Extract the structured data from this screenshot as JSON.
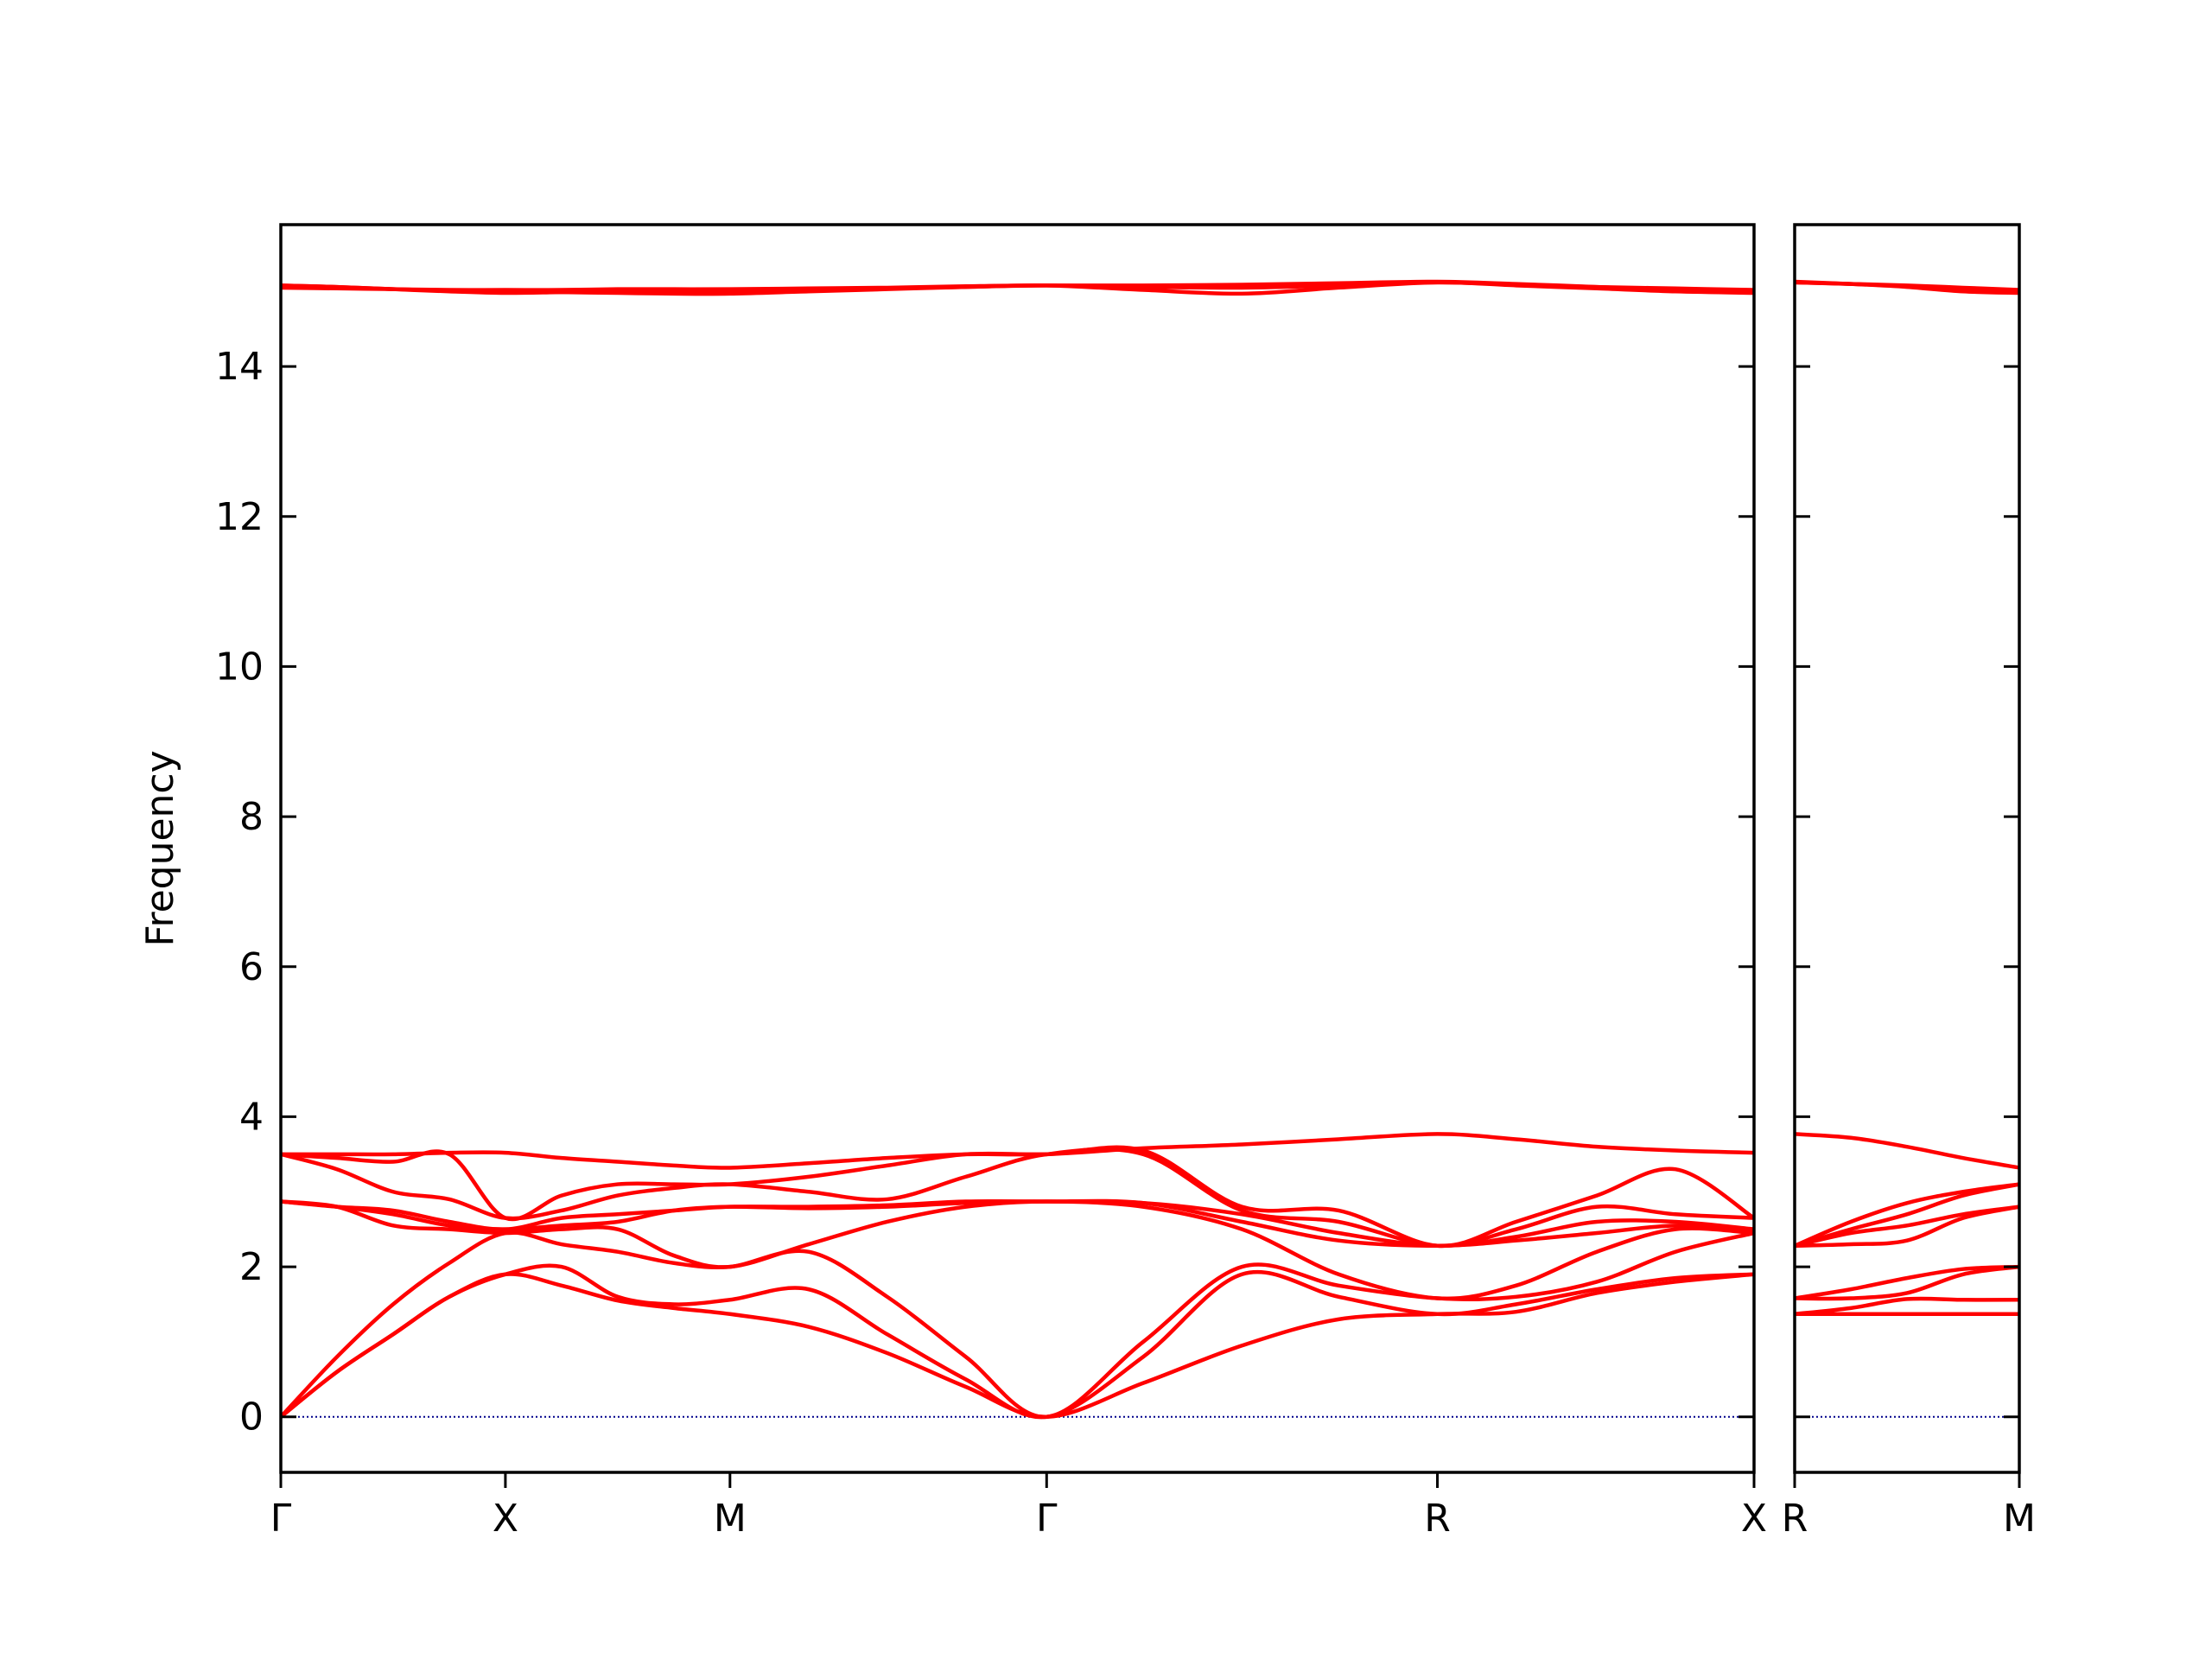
{
  "chart_data": [
    {
      "type": "line",
      "ylabel": "Frequency",
      "color": "#ff0000",
      "grid": false,
      "ytick_labels": true,
      "zero_line": {
        "value": 0,
        "color": "#00008b"
      },
      "xlim": [
        0,
        6.56
      ],
      "ylim": [
        -0.74,
        15.89
      ],
      "xticks": [
        {
          "value": 0,
          "label": "Γ"
        },
        {
          "value": 1,
          "label": "X"
        },
        {
          "value": 2,
          "label": "M"
        },
        {
          "value": 3.41,
          "label": "Γ"
        },
        {
          "value": 5.15,
          "label": "R"
        },
        {
          "value": 6.56,
          "label": "X"
        }
      ],
      "yticks": [
        0,
        2,
        4,
        6,
        8,
        10,
        12,
        14
      ],
      "x": [
        0,
        0.25,
        0.5,
        0.75,
        1,
        1.25,
        1.5,
        1.75,
        2,
        2.35,
        2.7,
        3.05,
        3.41,
        3.84,
        4.28,
        4.71,
        5.15,
        5.5,
        5.86,
        6.21,
        6.56
      ],
      "series": [
        {
          "values": [
            0,
            0.6,
            1.1,
            1.6,
            1.9,
            1.75,
            1.55,
            1.45,
            1.37,
            1.2,
            0.85,
            0.4,
            0,
            0.45,
            0.95,
            1.3,
            1.37,
            1.4,
            1.65,
            1.8,
            1.9
          ]
        },
        {
          "values": [
            0,
            0.6,
            1.1,
            1.6,
            1.9,
            2.0,
            1.6,
            1.5,
            1.56,
            1.7,
            1.1,
            0.5,
            0,
            0.8,
            1.9,
            1.6,
            1.37,
            1.5,
            1.7,
            1.85,
            1.9
          ]
        },
        {
          "values": [
            0,
            0.8,
            1.5,
            2.05,
            2.45,
            2.3,
            2.2,
            2.05,
            2.0,
            2.2,
            1.6,
            0.8,
            0,
            1.0,
            2.0,
            1.75,
            1.58,
            1.6,
            1.8,
            2.2,
            2.45
          ]
        },
        {
          "values": [
            2.87,
            2.8,
            2.55,
            2.5,
            2.45,
            2.5,
            2.5,
            2.15,
            2.0,
            2.3,
            2.6,
            2.8,
            2.87,
            2.8,
            2.5,
            1.9,
            1.58,
            1.75,
            2.2,
            2.5,
            2.45
          ]
        },
        {
          "values": [
            2.87,
            2.8,
            2.7,
            2.55,
            2.5,
            2.55,
            2.6,
            2.75,
            2.8,
            2.78,
            2.8,
            2.85,
            2.87,
            2.85,
            2.6,
            2.35,
            2.28,
            2.35,
            2.45,
            2.55,
            2.5
          ]
        },
        {
          "values": [
            2.87,
            2.8,
            2.75,
            2.6,
            2.5,
            2.65,
            2.7,
            2.75,
            2.8,
            2.8,
            2.82,
            2.87,
            2.87,
            2.85,
            2.7,
            2.45,
            2.28,
            2.4,
            2.6,
            2.6,
            2.5
          ]
        },
        {
          "values": [
            3.5,
            3.3,
            3.0,
            2.9,
            2.65,
            2.75,
            2.95,
            3.05,
            3.1,
            3.0,
            2.9,
            3.2,
            3.5,
            3.5,
            2.75,
            2.6,
            2.28,
            2.5,
            2.8,
            2.7,
            2.65
          ]
        },
        {
          "values": [
            3.5,
            3.45,
            3.4,
            3.5,
            2.65,
            2.95,
            3.1,
            3.1,
            3.1,
            3.2,
            3.35,
            3.5,
            3.5,
            3.55,
            2.8,
            2.75,
            2.28,
            2.6,
            2.95,
            3.3,
            2.65
          ]
        },
        {
          "values": [
            3.5,
            3.5,
            3.5,
            3.52,
            3.52,
            3.45,
            3.4,
            3.35,
            3.32,
            3.38,
            3.45,
            3.5,
            3.5,
            3.58,
            3.63,
            3.7,
            3.77,
            3.7,
            3.6,
            3.55,
            3.52
          ]
        },
        {
          "values": [
            15.08,
            15.06,
            15.03,
            15.0,
            14.98,
            14.99,
            15.0,
            15.0,
            15.0,
            15.02,
            15.04,
            15.06,
            15.08,
            15.02,
            14.97,
            15.05,
            15.12,
            15.08,
            15.04,
            15.0,
            14.98
          ]
        },
        {
          "values": [
            15.08,
            15.06,
            15.03,
            15.01,
            15.0,
            14.99,
            14.98,
            14.97,
            14.97,
            15.0,
            15.03,
            15.06,
            15.08,
            15.08,
            15.09,
            15.11,
            15.13,
            15.1,
            15.06,
            15.02,
            15.0
          ]
        },
        {
          "values": [
            15.05,
            15.04,
            15.03,
            15.02,
            15.02,
            15.02,
            15.03,
            15.03,
            15.03,
            15.04,
            15.05,
            15.07,
            15.08,
            15.06,
            15.05,
            15.08,
            15.12,
            15.09,
            15.06,
            15.04,
            15.02
          ]
        }
      ]
    },
    {
      "type": "line",
      "color": "#ff0000",
      "grid": false,
      "ytick_labels": false,
      "zero_line": {
        "value": 0,
        "color": "#00008b"
      },
      "xlim": [
        6.56,
        7.56
      ],
      "ylim": [
        -0.74,
        15.89
      ],
      "xticks": [
        {
          "value": 6.56,
          "label": "R"
        },
        {
          "value": 7.56,
          "label": "M"
        }
      ],
      "yticks": [
        0,
        2,
        4,
        6,
        8,
        10,
        12,
        14
      ],
      "x": [
        6.56,
        6.81,
        7.06,
        7.31,
        7.56
      ],
      "series": [
        {
          "values": [
            1.37,
            1.37,
            1.37,
            1.37,
            1.37
          ]
        },
        {
          "values": [
            1.37,
            1.45,
            1.57,
            1.56,
            1.56
          ]
        },
        {
          "values": [
            1.58,
            1.58,
            1.65,
            1.9,
            2.0
          ]
        },
        {
          "values": [
            1.58,
            1.7,
            1.85,
            1.97,
            2.0
          ]
        },
        {
          "values": [
            2.28,
            2.3,
            2.35,
            2.65,
            2.8
          ]
        },
        {
          "values": [
            2.28,
            2.45,
            2.55,
            2.7,
            2.8
          ]
        },
        {
          "values": [
            2.28,
            2.5,
            2.7,
            2.95,
            3.1
          ]
        },
        {
          "values": [
            2.28,
            2.6,
            2.85,
            3.0,
            3.1
          ]
        },
        {
          "values": [
            3.77,
            3.72,
            3.6,
            3.45,
            3.32
          ]
        },
        {
          "values": [
            15.12,
            15.1,
            15.07,
            15.03,
            15.0
          ]
        },
        {
          "values": [
            15.13,
            15.1,
            15.06,
            15.0,
            14.98
          ]
        },
        {
          "values": [
            15.12,
            15.1,
            15.08,
            15.05,
            15.02
          ]
        }
      ]
    }
  ]
}
